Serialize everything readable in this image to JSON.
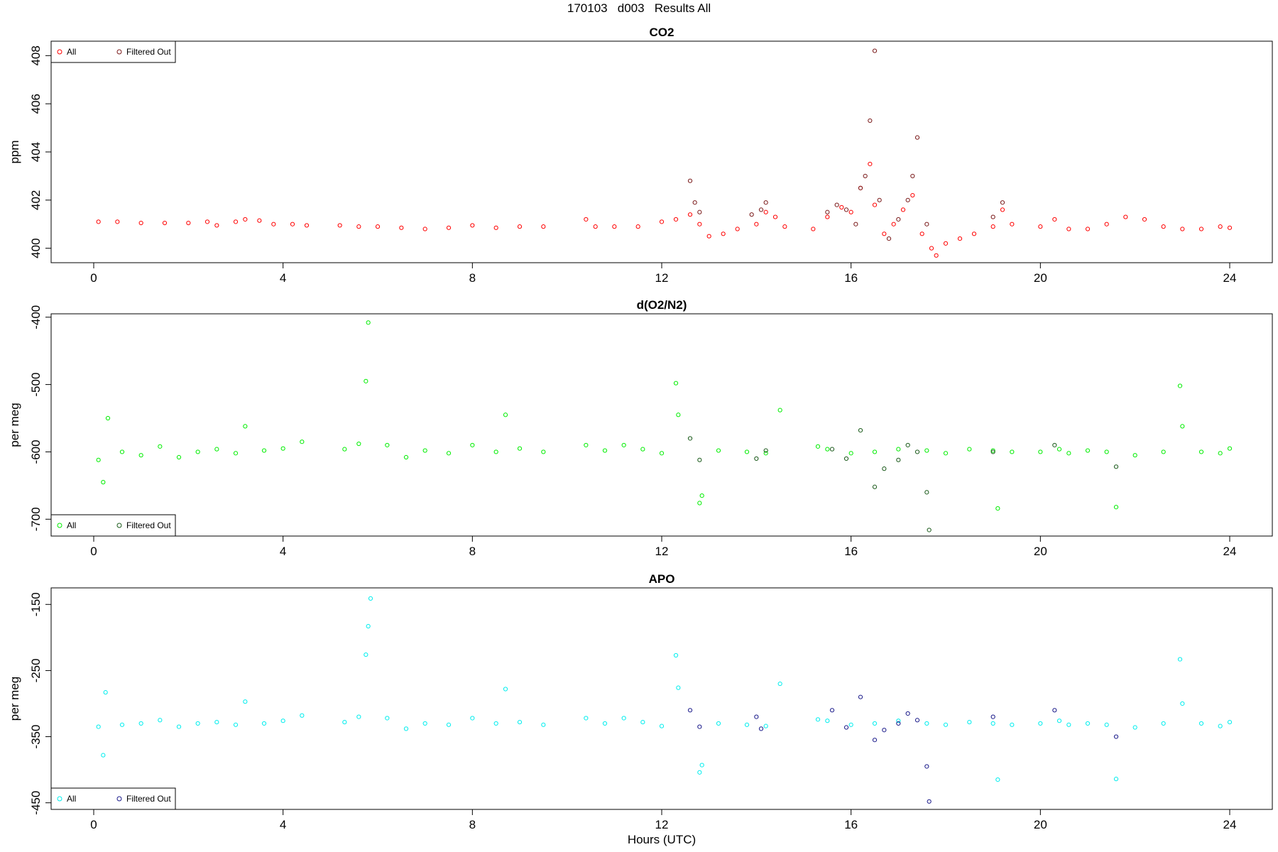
{
  "figure": {
    "title": "170103   d003   Results All",
    "xlabel": "Hours (UTC)"
  },
  "colors": {
    "co2_all": "#ff0000",
    "co2_filtered": "#7a1a1a",
    "o2_all": "#00ee00",
    "o2_filtered": "#1a5a1a",
    "apo_all": "#00eeee",
    "apo_filtered": "#1a1a8a"
  },
  "chart_data": [
    {
      "type": "scatter",
      "title": "CO2",
      "ylabel": "ppm",
      "xlim": [
        -0.9,
        24.9
      ],
      "ylim": [
        399.4,
        408.6
      ],
      "xticks": [
        0,
        4,
        8,
        12,
        16,
        20,
        24
      ],
      "yticks": [
        400,
        402,
        404,
        406,
        408
      ],
      "legend": {
        "position": "top-left",
        "entries": [
          "All",
          "Filtered Out"
        ]
      },
      "series": [
        {
          "name": "All",
          "color_key": "co2_all",
          "x": [
            0.1,
            0.5,
            1,
            1.5,
            2,
            2.4,
            2.6,
            3,
            3.2,
            3.5,
            3.8,
            4.2,
            4.5,
            5.2,
            5.6,
            6,
            6.5,
            7,
            7.5,
            8,
            8.5,
            9,
            9.5,
            10.4,
            10.6,
            11,
            11.5,
            12,
            12.3,
            12.6,
            12.8,
            13,
            13.3,
            13.6,
            14,
            14.2,
            14.4,
            14.6,
            15.2,
            15.5,
            15.8,
            16,
            16.2,
            16.4,
            16.5,
            16.7,
            16.9,
            17.1,
            17.3,
            17.5,
            17.7,
            17.8,
            18,
            18.3,
            18.6,
            19,
            19.2,
            19.4,
            20,
            20.3,
            20.6,
            21,
            21.4,
            21.8,
            22.2,
            22.6,
            23,
            23.4,
            23.8,
            24
          ],
          "y": [
            401.1,
            401.1,
            401.05,
            401.05,
            401.05,
            401.1,
            400.95,
            401.1,
            401.2,
            401.15,
            401.0,
            401.0,
            400.95,
            400.95,
            400.9,
            400.9,
            400.85,
            400.8,
            400.85,
            400.95,
            400.85,
            400.9,
            400.9,
            401.2,
            400.9,
            400.9,
            400.9,
            401.1,
            401.2,
            401.4,
            401.0,
            400.5,
            400.6,
            400.8,
            401.0,
            401.5,
            401.3,
            400.9,
            400.8,
            401.3,
            401.7,
            401.5,
            402.5,
            403.5,
            401.8,
            400.6,
            401.0,
            401.6,
            402.2,
            400.6,
            400.0,
            399.7,
            400.2,
            400.4,
            400.6,
            400.9,
            401.6,
            401.0,
            400.9,
            401.2,
            400.8,
            400.8,
            401.0,
            401.3,
            401.2,
            400.9,
            400.8,
            400.8,
            400.9,
            400.85
          ]
        },
        {
          "name": "Filtered Out",
          "color_key": "co2_filtered",
          "x": [
            12.6,
            12.7,
            12.8,
            13.9,
            14.1,
            14.2,
            15.5,
            15.7,
            15.9,
            16.1,
            16.2,
            16.3,
            16.4,
            16.5,
            16.6,
            16.8,
            17.0,
            17.2,
            17.3,
            17.4,
            17.6,
            19.0,
            19.2
          ],
          "y": [
            402.8,
            401.9,
            401.5,
            401.4,
            401.6,
            401.9,
            401.5,
            401.8,
            401.6,
            401.0,
            402.5,
            403.0,
            405.3,
            408.2,
            402.0,
            400.4,
            401.2,
            402.0,
            403.0,
            404.6,
            401.0,
            401.3,
            401.9
          ]
        }
      ]
    },
    {
      "type": "scatter",
      "title": "d(O2/N2)",
      "ylabel": "per meg",
      "xlim": [
        -0.9,
        24.9
      ],
      "ylim": [
        -725,
        -395
      ],
      "xticks": [
        0,
        4,
        8,
        12,
        16,
        20,
        24
      ],
      "yticks": [
        -400,
        -500,
        -600,
        -700
      ],
      "legend": {
        "position": "bottom-left",
        "entries": [
          "All",
          "Filtered Out"
        ]
      },
      "series": [
        {
          "name": "All",
          "color_key": "o2_all",
          "x": [
            0.1,
            0.2,
            0.3,
            0.6,
            1.0,
            1.4,
            1.8,
            2.2,
            2.6,
            3.0,
            3.2,
            3.6,
            4.0,
            4.4,
            5.3,
            5.6,
            5.75,
            5.8,
            6.2,
            6.6,
            7.0,
            7.5,
            8.0,
            8.5,
            8.7,
            9.0,
            9.5,
            10.4,
            10.8,
            11.2,
            11.6,
            12.0,
            12.3,
            12.35,
            12.8,
            12.85,
            13.2,
            13.8,
            14.2,
            14.5,
            15.3,
            15.5,
            16.0,
            16.5,
            17.0,
            17.6,
            18.0,
            18.5,
            19.0,
            19.1,
            19.4,
            20.0,
            20.4,
            20.6,
            21.0,
            21.4,
            21.6,
            22.0,
            22.6,
            22.95,
            23.0,
            23.4,
            23.8,
            24.0
          ],
          "y": [
            -612,
            -645,
            -550,
            -600,
            -605,
            -592,
            -608,
            -600,
            -596,
            -602,
            -562,
            -598,
            -595,
            -585,
            -596,
            -588,
            -495,
            -408,
            -590,
            -608,
            -598,
            -602,
            -590,
            -600,
            -545,
            -595,
            -600,
            -590,
            -598,
            -590,
            -596,
            -602,
            -498,
            -545,
            -676,
            -665,
            -598,
            -600,
            -602,
            -538,
            -592,
            -596,
            -602,
            -600,
            -596,
            -598,
            -602,
            -596,
            -598,
            -684,
            -600,
            -600,
            -596,
            -602,
            -598,
            -600,
            -682,
            -605,
            -600,
            -502,
            -562,
            -600,
            -602,
            -595
          ]
        },
        {
          "name": "Filtered Out",
          "color_key": "o2_filtered",
          "x": [
            12.6,
            12.8,
            14.0,
            14.2,
            15.6,
            15.9,
            16.2,
            16.5,
            16.7,
            17.0,
            17.2,
            17.4,
            17.6,
            17.65,
            19.0,
            20.3,
            21.6
          ],
          "y": [
            -580,
            -612,
            -610,
            -598,
            -596,
            -610,
            -568,
            -652,
            -625,
            -612,
            -590,
            -600,
            -660,
            -716,
            -600,
            -590,
            -622
          ]
        }
      ]
    },
    {
      "type": "scatter",
      "title": "APO",
      "ylabel": "per meg",
      "xlim": [
        -0.9,
        24.9
      ],
      "ylim": [
        -460,
        -125
      ],
      "xticks": [
        0,
        4,
        8,
        12,
        16,
        20,
        24
      ],
      "yticks": [
        -150,
        -250,
        -350,
        -450
      ],
      "legend": {
        "position": "bottom-left",
        "entries": [
          "All",
          "Filtered Out"
        ]
      },
      "series": [
        {
          "name": "All",
          "color_key": "apo_all",
          "x": [
            0.1,
            0.2,
            0.25,
            0.6,
            1.0,
            1.4,
            1.8,
            2.2,
            2.6,
            3.0,
            3.2,
            3.6,
            4.0,
            4.4,
            5.3,
            5.6,
            5.75,
            5.8,
            5.85,
            6.2,
            6.6,
            7.0,
            7.5,
            8.0,
            8.5,
            8.7,
            9.0,
            9.5,
            10.4,
            10.8,
            11.2,
            11.6,
            12.0,
            12.3,
            12.35,
            12.8,
            12.85,
            13.2,
            13.8,
            14.2,
            14.5,
            15.3,
            15.5,
            16.0,
            16.5,
            17.0,
            17.6,
            18.0,
            18.5,
            19.0,
            19.1,
            19.4,
            20.0,
            20.4,
            20.6,
            21.0,
            21.4,
            21.6,
            22.0,
            22.6,
            22.95,
            23.0,
            23.4,
            23.8,
            24.0
          ],
          "y": [
            -335,
            -378,
            -283,
            -332,
            -330,
            -325,
            -335,
            -330,
            -328,
            -332,
            -297,
            -330,
            -326,
            -318,
            -328,
            -320,
            -226,
            -183,
            -141,
            -322,
            -338,
            -330,
            -332,
            -322,
            -330,
            -278,
            -328,
            -332,
            -322,
            -330,
            -322,
            -328,
            -334,
            -227,
            -276,
            -404,
            -393,
            -330,
            -332,
            -334,
            -270,
            -324,
            -326,
            -332,
            -330,
            -326,
            -330,
            -332,
            -328,
            -330,
            -415,
            -332,
            -330,
            -326,
            -332,
            -330,
            -332,
            -414,
            -336,
            -330,
            -233,
            -300,
            -330,
            -334,
            -328
          ]
        },
        {
          "name": "Filtered Out",
          "color_key": "apo_filtered",
          "x": [
            12.6,
            12.8,
            14.0,
            14.1,
            15.6,
            15.9,
            16.2,
            16.5,
            16.7,
            17.0,
            17.2,
            17.4,
            17.6,
            17.65,
            19.0,
            20.3,
            21.6
          ],
          "y": [
            -310,
            -335,
            -320,
            -338,
            -310,
            -336,
            -290,
            -355,
            -340,
            -330,
            -315,
            -325,
            -395,
            -448,
            -320,
            -310,
            -350
          ]
        }
      ]
    }
  ]
}
